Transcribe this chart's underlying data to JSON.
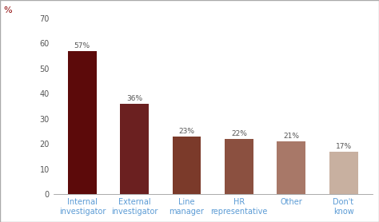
{
  "categories": [
    "Internal\ninvestigator",
    "External\ninvestigator",
    "Line\nmanager",
    "HR\nrepresentative",
    "Other",
    "Don't\nknow"
  ],
  "values": [
    57,
    36,
    23,
    22,
    21,
    17
  ],
  "bar_colors": [
    "#5C0A0A",
    "#6B2020",
    "#7B3A2A",
    "#8B5040",
    "#A87868",
    "#C8B0A0"
  ],
  "labels": [
    "57%",
    "36%",
    "23%",
    "22%",
    "21%",
    "17%"
  ],
  "ylabel": "%",
  "ylim": [
    0,
    70
  ],
  "yticks": [
    0,
    10,
    20,
    30,
    40,
    50,
    60,
    70
  ],
  "label_fontsize": 6.5,
  "tick_fontsize": 7,
  "ylabel_fontsize": 8,
  "xlabel_color": "#5B9BD5",
  "ylabel_color": "#8B0000",
  "background_color": "#ffffff",
  "border_color": "#aaaaaa"
}
